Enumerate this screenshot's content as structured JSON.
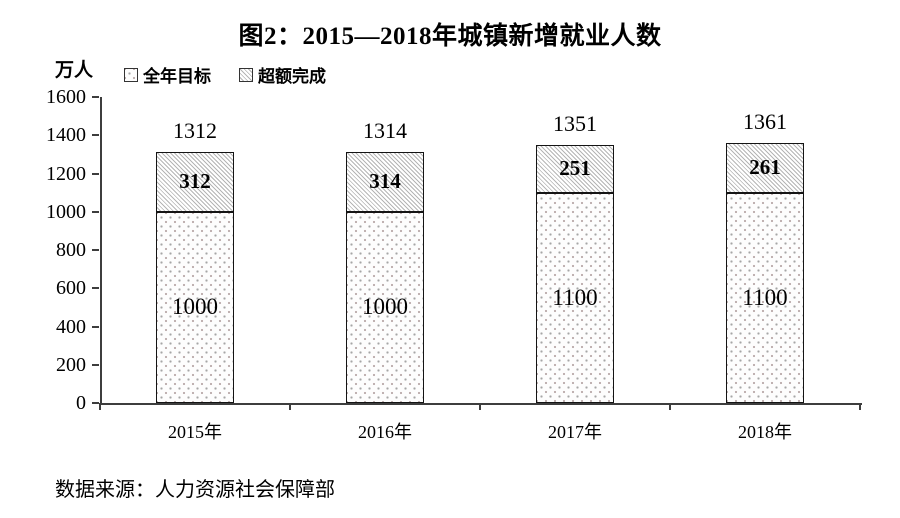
{
  "source": "数据来源：人力资源社会保障部",
  "colors": {
    "background": "#ffffff",
    "bar_border": "#141414",
    "hatch_line": "#b5b5b5",
    "dot": "#a6a6a6",
    "axis": "#3d3d3d",
    "text": "#000000"
  },
  "chart_data": {
    "type": "bar",
    "stacked": true,
    "title": "图2：2015—2018年城镇新增就业人数",
    "ylabel": "万人",
    "xlabel": "",
    "categories": [
      "2015年",
      "2016年",
      "2017年",
      "2018年"
    ],
    "series": [
      {
        "name": "全年目标",
        "pattern": "dotted",
        "values": [
          1000,
          1000,
          1100,
          1100
        ]
      },
      {
        "name": "超额完成",
        "pattern": "hatched",
        "values": [
          312,
          314,
          251,
          261
        ]
      }
    ],
    "totals": [
      1312,
      1314,
      1351,
      1361
    ],
    "ylim": [
      0,
      1600
    ],
    "yticks": [
      0,
      200,
      400,
      600,
      800,
      1000,
      1200,
      1400,
      1600
    ],
    "legend_position": "top-left",
    "grid": false
  }
}
